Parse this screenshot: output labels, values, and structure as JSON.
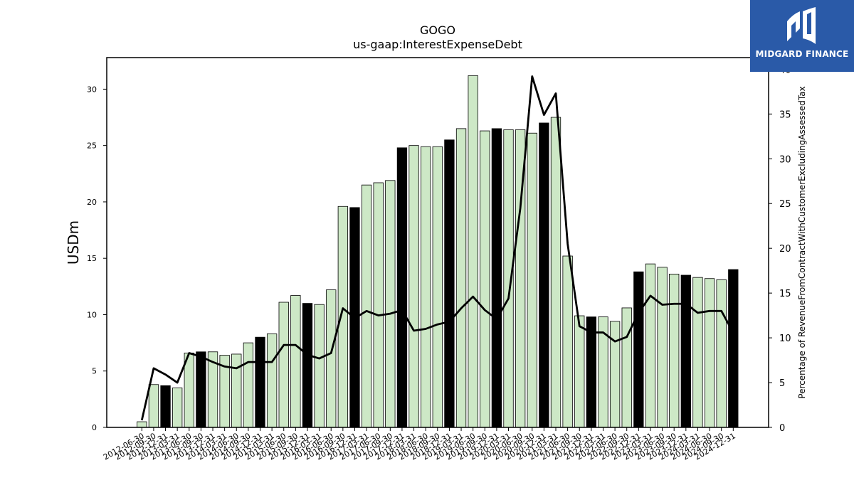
{
  "chart_data": {
    "type": "bar",
    "title": "GOGO",
    "subtitle": "us-gaap:InterestExpenseDebt",
    "ylabel": "USDm",
    "y2label": "Percentage of RevenueFromContractWithCustomerExcludingAssessedTax",
    "ylim": [
      0,
      32.8
    ],
    "y2lim": [
      0,
      41.3
    ],
    "yticks": [
      0,
      5,
      10,
      15,
      20,
      25,
      30
    ],
    "y2ticks": [
      0,
      5,
      10,
      15,
      20,
      25,
      30,
      35,
      40
    ],
    "categories": [
      "2012-06-30",
      "2012-09-30",
      "2012-12-31",
      "2013-03-31",
      "2013-06-30",
      "2013-09-30",
      "2013-12-31",
      "2014-03-31",
      "2014-06-30",
      "2014-09-30",
      "2014-12-31",
      "2015-03-31",
      "2015-06-30",
      "2015-09-30",
      "2015-12-31",
      "2016-03-31",
      "2016-06-30",
      "2016-09-30",
      "2016-12-31",
      "2017-03-31",
      "2017-06-30",
      "2017-09-30",
      "2017-12-31",
      "2018-03-31",
      "2018-06-30",
      "2018-09-30",
      "2018-12-31",
      "2019-03-31",
      "2019-06-30",
      "2019-09-30",
      "2019-12-31",
      "2020-03-31",
      "2020-06-30",
      "2020-09-30",
      "2020-12-31",
      "2021-03-31",
      "2021-06-30",
      "2021-09-30",
      "2021-12-31",
      "2022-03-31",
      "2022-06-30",
      "2022-09-30",
      "2022-12-31",
      "2023-03-31",
      "2023-06-30",
      "2023-09-30",
      "2023-12-31",
      "2024-03-31",
      "2024-06-30",
      "2024-09-30",
      "2024-12-31"
    ],
    "xticklabels": [
      "2012-06-30",
      "2012-09-30",
      "2012-12-31",
      "2013-03-31",
      "2013-06-30",
      "2013-09-30",
      "2013-12-31",
      "2014-03-31",
      "2014-06-30",
      "2014-09-30",
      "2014-12-31",
      "2015-03-31",
      "2015-06-30",
      "2015-09-30",
      "2015-12-31",
      "2016-03-31",
      "2016-06-30",
      "2016-09-30",
      "2016-12-31",
      "2017-03-31",
      "2017-06-30",
      "2017-09-30",
      "2017-12-31",
      "2018-03-31",
      "2018-06-30",
      "2018-09-30",
      "2018-12-31",
      "2019-03-31",
      "2019-06-30",
      "2019-09-30",
      "2019-12-31",
      "2020-03-31",
      "2020-06-30",
      "2020-09-30",
      "2020-12-31",
      "2021-03-31",
      "2021-06-30",
      "2021-09-30",
      "2021-12-31",
      "2022-03-31",
      "2022-06-30",
      "2022-09-30",
      "2022-12-31",
      "2023-03-31",
      "2023-06-30",
      "2023-09-30",
      "2023-12-31",
      "2024-03-31",
      "2024-06-30",
      "2024-09-30",
      "2024-12-31"
    ],
    "series": [
      {
        "values": [
          0.5,
          3.8,
          3.7,
          3.5,
          6.6,
          6.7,
          6.7,
          6.4,
          6.5,
          7.5,
          8.0,
          8.3,
          11.1,
          11.7,
          11.0,
          10.9,
          12.2,
          19.6,
          19.5,
          21.5,
          21.7,
          21.9,
          24.8,
          25.0,
          24.9,
          24.9,
          25.5,
          26.5,
          31.2,
          26.3,
          26.5,
          26.4,
          26.4,
          26.1,
          27.0,
          27.5,
          15.2,
          9.9,
          9.8,
          9.8,
          9.4,
          10.6,
          13.8,
          14.5,
          14.2,
          13.6,
          13.5,
          13.3,
          13.2,
          13.1,
          14.0
        ],
        "highlight": [
          false,
          false,
          true,
          false,
          false,
          true,
          false,
          false,
          false,
          false,
          true,
          false,
          false,
          false,
          true,
          false,
          false,
          false,
          true,
          false,
          false,
          false,
          true,
          false,
          false,
          false,
          true,
          false,
          false,
          false,
          true,
          false,
          false,
          false,
          true,
          false,
          false,
          false,
          true,
          false,
          false,
          false,
          true,
          false,
          false,
          false,
          true,
          false,
          false,
          false,
          true
        ]
      },
      {
        "axis": "right",
        "values": [
          0.8,
          6.6,
          5.9,
          5.0,
          8.3,
          7.9,
          7.3,
          6.8,
          6.6,
          7.3,
          7.3,
          7.3,
          9.2,
          9.2,
          8.1,
          7.7,
          8.3,
          13.3,
          12.2,
          13.0,
          12.5,
          12.7,
          13.1,
          10.8,
          11.0,
          11.5,
          11.8,
          13.3,
          14.6,
          13.1,
          12.1,
          14.4,
          24.5,
          39.2,
          34.9,
          37.3,
          20.5,
          11.3,
          10.6,
          10.6,
          9.6,
          10.1,
          12.8,
          14.7,
          13.7,
          13.8,
          13.8,
          12.8,
          13.0,
          13.0,
          10.6
        ]
      }
    ],
    "colors": {
      "bar": "#cde8c6",
      "bar_highlight": "#000000",
      "bar_edge": "#000000",
      "line": "#000000"
    }
  },
  "logo": {
    "text": "MIDGARD FINANCE",
    "background": "#2a5aa8"
  }
}
